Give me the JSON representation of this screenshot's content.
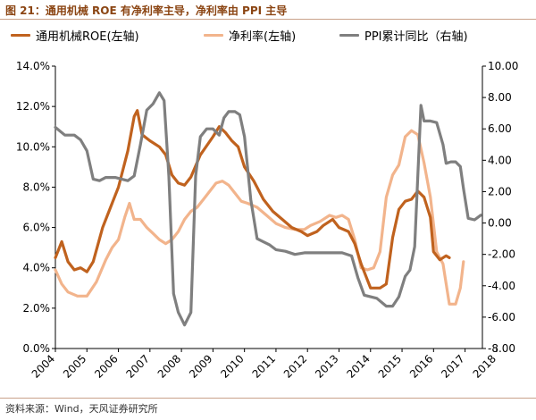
{
  "header": {
    "title": "图 21：通用机械 ROE 有净利率主导，净利率由 PPI 主导"
  },
  "footer": {
    "source": "资料来源：Wind，天风证券研究所"
  },
  "colors": {
    "roe": "#C0621E",
    "net_margin": "#F2B48C",
    "ppi": "#7F7F7F",
    "accent": "#8B4513"
  },
  "chart_data": {
    "type": "line",
    "title": "",
    "legend_position": "top",
    "grid": false,
    "x_tick_labels": [
      "2004",
      "2005",
      "2006",
      "2007",
      "2008",
      "2009",
      "2010",
      "2011",
      "2012",
      "2013",
      "2014",
      "2015",
      "2016",
      "2017",
      "2018"
    ],
    "y_left": {
      "ylim": [
        0,
        14
      ],
      "tick_labels": [
        "0.0%",
        "2.0%",
        "4.0%",
        "6.0%",
        "8.0%",
        "10.0%",
        "12.0%",
        "14.0%"
      ]
    },
    "y_right": {
      "ylim": [
        -8,
        10
      ],
      "tick_labels": [
        "-8.00",
        "-6.00",
        "-4.00",
        "-2.00",
        "0.00",
        "2.00",
        "4.00",
        "6.00",
        "8.00",
        "10.00"
      ]
    },
    "series": [
      {
        "name": "通用机械ROE(左轴)",
        "axis": "left",
        "color": "#C0621E",
        "points": [
          [
            2004.0,
            4.5
          ],
          [
            2004.2,
            5.3
          ],
          [
            2004.4,
            4.3
          ],
          [
            2004.6,
            3.9
          ],
          [
            2004.8,
            4.0
          ],
          [
            2005.0,
            3.8
          ],
          [
            2005.2,
            4.3
          ],
          [
            2005.5,
            6.0
          ],
          [
            2005.8,
            7.2
          ],
          [
            2006.0,
            8.0
          ],
          [
            2006.3,
            9.8
          ],
          [
            2006.5,
            11.5
          ],
          [
            2006.6,
            11.8
          ],
          [
            2006.75,
            10.6
          ],
          [
            2007.0,
            10.3
          ],
          [
            2007.3,
            10.0
          ],
          [
            2007.5,
            9.6
          ],
          [
            2007.7,
            8.6
          ],
          [
            2007.9,
            8.2
          ],
          [
            2008.1,
            8.1
          ],
          [
            2008.3,
            8.5
          ],
          [
            2008.6,
            9.6
          ],
          [
            2009.0,
            10.5
          ],
          [
            2009.2,
            11.0
          ],
          [
            2009.4,
            10.7
          ],
          [
            2009.6,
            10.3
          ],
          [
            2009.8,
            10.0
          ],
          [
            2010.0,
            9.0
          ],
          [
            2010.3,
            8.3
          ],
          [
            2010.6,
            7.4
          ],
          [
            2010.9,
            6.8
          ],
          [
            2011.2,
            6.4
          ],
          [
            2011.5,
            6.0
          ],
          [
            2011.8,
            5.8
          ],
          [
            2012.0,
            5.6
          ],
          [
            2012.3,
            5.8
          ],
          [
            2012.5,
            6.1
          ],
          [
            2012.8,
            6.4
          ],
          [
            2013.0,
            6.0
          ],
          [
            2013.3,
            5.8
          ],
          [
            2013.5,
            5.2
          ],
          [
            2013.7,
            4.2
          ],
          [
            2014.0,
            3.0
          ],
          [
            2014.3,
            3.0
          ],
          [
            2014.5,
            3.2
          ],
          [
            2014.7,
            5.5
          ],
          [
            2014.9,
            6.9
          ],
          [
            2015.1,
            7.3
          ],
          [
            2015.3,
            7.4
          ],
          [
            2015.5,
            7.8
          ],
          [
            2015.7,
            7.5
          ],
          [
            2015.9,
            6.5
          ],
          [
            2016.0,
            4.8
          ],
          [
            2016.2,
            4.4
          ],
          [
            2016.4,
            4.6
          ],
          [
            2016.5,
            4.5
          ]
        ]
      },
      {
        "name": "净利率(左轴)",
        "axis": "left",
        "color": "#F2B48C",
        "points": [
          [
            2004.0,
            3.9
          ],
          [
            2004.2,
            3.2
          ],
          [
            2004.4,
            2.8
          ],
          [
            2004.7,
            2.6
          ],
          [
            2005.0,
            2.6
          ],
          [
            2005.3,
            3.3
          ],
          [
            2005.6,
            4.4
          ],
          [
            2005.8,
            5.0
          ],
          [
            2006.0,
            5.4
          ],
          [
            2006.2,
            6.5
          ],
          [
            2006.35,
            7.2
          ],
          [
            2006.5,
            6.4
          ],
          [
            2006.7,
            6.4
          ],
          [
            2006.9,
            6.0
          ],
          [
            2007.1,
            5.7
          ],
          [
            2007.3,
            5.4
          ],
          [
            2007.5,
            5.2
          ],
          [
            2007.7,
            5.4
          ],
          [
            2007.9,
            5.8
          ],
          [
            2008.1,
            6.4
          ],
          [
            2008.3,
            6.8
          ],
          [
            2008.5,
            7.0
          ],
          [
            2008.7,
            7.4
          ],
          [
            2008.9,
            7.8
          ],
          [
            2009.1,
            8.2
          ],
          [
            2009.3,
            8.3
          ],
          [
            2009.5,
            8.1
          ],
          [
            2009.7,
            7.7
          ],
          [
            2009.9,
            7.3
          ],
          [
            2010.1,
            7.2
          ],
          [
            2010.4,
            7.0
          ],
          [
            2010.7,
            6.6
          ],
          [
            2011.0,
            6.2
          ],
          [
            2011.3,
            6.0
          ],
          [
            2011.6,
            5.9
          ],
          [
            2011.9,
            5.9
          ],
          [
            2012.1,
            6.1
          ],
          [
            2012.4,
            6.3
          ],
          [
            2012.7,
            6.6
          ],
          [
            2012.9,
            6.5
          ],
          [
            2013.1,
            6.6
          ],
          [
            2013.3,
            6.4
          ],
          [
            2013.5,
            5.4
          ],
          [
            2013.7,
            4.0
          ],
          [
            2013.9,
            3.9
          ],
          [
            2014.1,
            4.0
          ],
          [
            2014.3,
            4.8
          ],
          [
            2014.5,
            7.5
          ],
          [
            2014.7,
            8.6
          ],
          [
            2014.9,
            9.1
          ],
          [
            2015.1,
            10.5
          ],
          [
            2015.3,
            10.8
          ],
          [
            2015.5,
            10.6
          ],
          [
            2015.7,
            9.2
          ],
          [
            2015.9,
            7.5
          ],
          [
            2016.1,
            4.8
          ],
          [
            2016.3,
            4.2
          ],
          [
            2016.5,
            2.2
          ],
          [
            2016.7,
            2.2
          ],
          [
            2016.85,
            3.0
          ],
          [
            2016.95,
            4.3
          ]
        ]
      },
      {
        "name": "PPI累计同比（右轴)",
        "axis": "right",
        "color": "#7F7F7F",
        "points": [
          [
            2004.0,
            6.1
          ],
          [
            2004.3,
            5.6
          ],
          [
            2004.6,
            5.6
          ],
          [
            2004.8,
            5.3
          ],
          [
            2005.0,
            4.6
          ],
          [
            2005.2,
            2.8
          ],
          [
            2005.4,
            2.7
          ],
          [
            2005.6,
            2.9
          ],
          [
            2005.9,
            2.9
          ],
          [
            2006.1,
            2.8
          ],
          [
            2006.3,
            2.7
          ],
          [
            2006.5,
            3.0
          ],
          [
            2006.7,
            5.0
          ],
          [
            2006.9,
            7.2
          ],
          [
            2007.1,
            7.6
          ],
          [
            2007.3,
            8.3
          ],
          [
            2007.45,
            7.8
          ],
          [
            2007.6,
            3.0
          ],
          [
            2007.75,
            -4.5
          ],
          [
            2007.9,
            -5.7
          ],
          [
            2008.1,
            -6.5
          ],
          [
            2008.3,
            -5.7
          ],
          [
            2008.45,
            3.0
          ],
          [
            2008.6,
            5.5
          ],
          [
            2008.8,
            6.0
          ],
          [
            2009.0,
            6.0
          ],
          [
            2009.2,
            5.6
          ],
          [
            2009.35,
            6.7
          ],
          [
            2009.5,
            7.1
          ],
          [
            2009.7,
            7.1
          ],
          [
            2009.85,
            6.9
          ],
          [
            2010.0,
            5.5
          ],
          [
            2010.2,
            1.5
          ],
          [
            2010.4,
            -1.0
          ],
          [
            2010.6,
            -1.2
          ],
          [
            2010.8,
            -1.4
          ],
          [
            2011.0,
            -1.7
          ],
          [
            2011.3,
            -1.8
          ],
          [
            2011.6,
            -2.0
          ],
          [
            2011.9,
            -1.9
          ],
          [
            2012.2,
            -1.9
          ],
          [
            2012.5,
            -1.9
          ],
          [
            2012.8,
            -1.9
          ],
          [
            2013.1,
            -1.9
          ],
          [
            2013.4,
            -2.1
          ],
          [
            2013.6,
            -3.5
          ],
          [
            2013.8,
            -4.6
          ],
          [
            2014.0,
            -4.7
          ],
          [
            2014.2,
            -4.8
          ],
          [
            2014.5,
            -5.3
          ],
          [
            2014.7,
            -5.3
          ],
          [
            2014.9,
            -4.7
          ],
          [
            2015.1,
            -3.4
          ],
          [
            2015.25,
            -3.0
          ],
          [
            2015.4,
            -1.5
          ],
          [
            2015.5,
            3.0
          ],
          [
            2015.6,
            7.5
          ],
          [
            2015.7,
            6.5
          ],
          [
            2015.9,
            6.5
          ],
          [
            2016.1,
            6.4
          ],
          [
            2016.3,
            5.0
          ],
          [
            2016.4,
            3.8
          ],
          [
            2016.55,
            3.9
          ],
          [
            2016.7,
            3.9
          ],
          [
            2016.85,
            3.6
          ],
          [
            2016.95,
            2.2
          ],
          [
            2017.1,
            0.3
          ],
          [
            2017.3,
            0.2
          ],
          [
            2017.5,
            0.5
          ]
        ]
      }
    ]
  }
}
